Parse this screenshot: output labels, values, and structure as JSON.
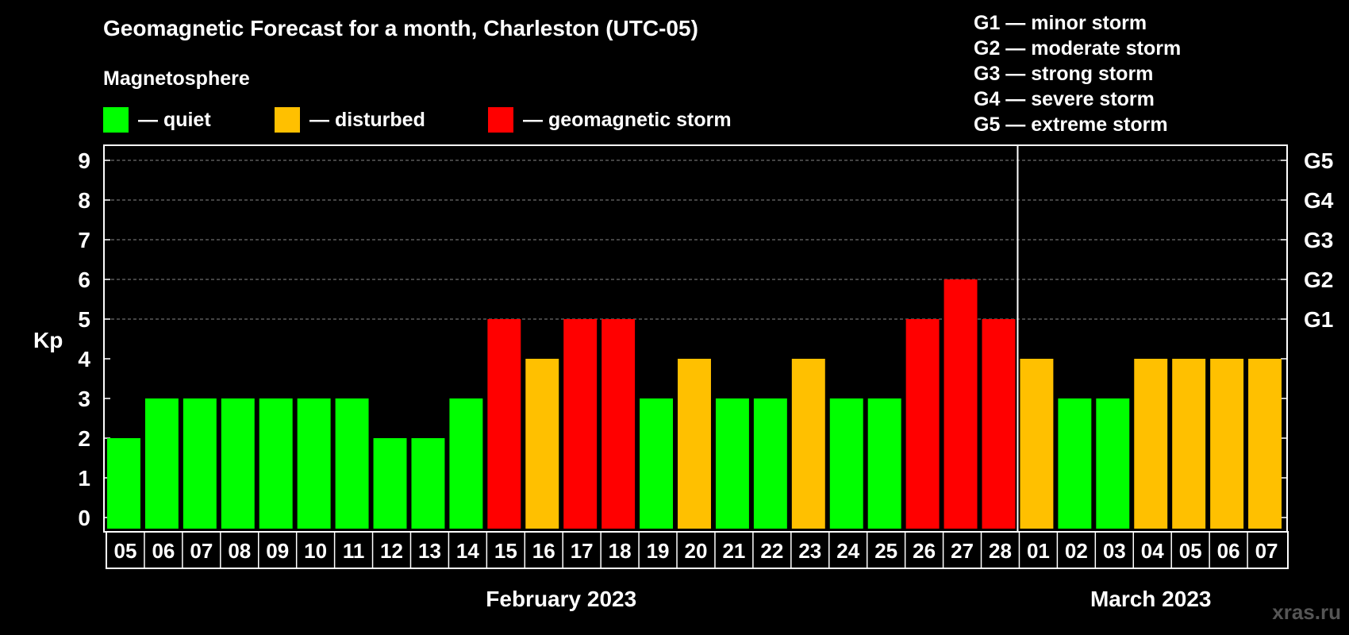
{
  "title": "Geomagnetic Forecast for a month, Charleston (UTC-05)",
  "subtitle": "Magnetosphere",
  "legend": [
    {
      "label": "— quiet",
      "color": "#00ff00"
    },
    {
      "label": "— disturbed",
      "color": "#ffc000"
    },
    {
      "label": "— geomagnetic storm",
      "color": "#ff0000"
    }
  ],
  "storm_levels": [
    "G1 — minor storm",
    "G2 — moderate storm",
    "G3 — strong storm",
    "G4 — severe storm",
    "G5 — extreme storm"
  ],
  "watermark": "xras.ru",
  "chart_data": {
    "type": "bar",
    "ylabel": "Kp",
    "ylim": [
      0,
      9
    ],
    "y_ticks": [
      0,
      1,
      2,
      3,
      4,
      5,
      6,
      7,
      8,
      9
    ],
    "right_axis_labels": [
      {
        "value": 5,
        "label": "G1"
      },
      {
        "value": 6,
        "label": "G2"
      },
      {
        "value": 7,
        "label": "G3"
      },
      {
        "value": 8,
        "label": "G4"
      },
      {
        "value": 9,
        "label": "G5"
      }
    ],
    "grid": "dashed horizontal at Kp 5–9",
    "categories": [
      "05",
      "06",
      "07",
      "08",
      "09",
      "10",
      "11",
      "12",
      "13",
      "14",
      "15",
      "16",
      "17",
      "18",
      "19",
      "20",
      "21",
      "22",
      "23",
      "24",
      "25",
      "26",
      "27",
      "28",
      "01",
      "02",
      "03",
      "04",
      "05",
      "06",
      "07"
    ],
    "values": [
      2,
      3,
      3,
      3,
      3,
      3,
      3,
      2,
      2,
      3,
      5,
      4,
      5,
      5,
      3,
      4,
      3,
      3,
      4,
      3,
      3,
      5,
      6,
      5,
      4,
      3,
      3,
      4,
      4,
      4,
      4
    ],
    "colors": {
      "quiet": "#00ff00",
      "disturbed": "#ffc000",
      "storm": "#ff0000"
    },
    "month_groups": [
      {
        "label": "February 2023",
        "start": 0,
        "end": 23
      },
      {
        "label": "March 2023",
        "start": 24,
        "end": 30
      }
    ]
  }
}
